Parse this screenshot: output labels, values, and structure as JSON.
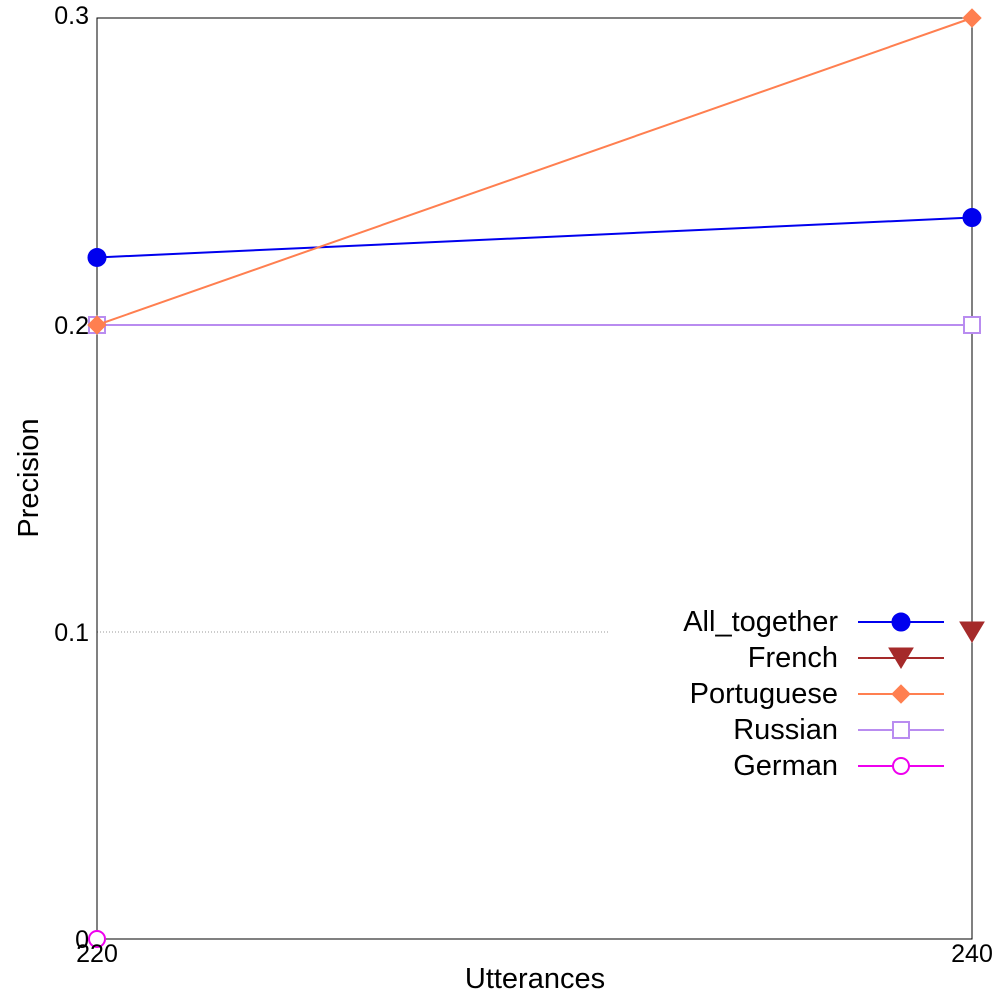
{
  "chart_data": {
    "type": "line",
    "xlabel": "Utterances",
    "ylabel": "Precision",
    "xlim": [
      220,
      240
    ],
    "ylim": [
      0,
      0.3
    ],
    "x_ticks": [
      "220",
      "240"
    ],
    "y_ticks": [
      "0",
      "0.1",
      "0.2",
      "0.3"
    ],
    "grid": "dotted line at y=0.1 (left portion only)",
    "legend_position": "right",
    "series": [
      {
        "name": "All_together",
        "color": "#0000ee",
        "marker": "filled-circle",
        "points": [
          [
            220,
            0.222
          ],
          [
            240,
            0.235
          ]
        ]
      },
      {
        "name": "French",
        "color": "#a52a2a",
        "marker": "filled-triangle-down",
        "points": [
          [
            240,
            0.1
          ]
        ]
      },
      {
        "name": "Portuguese",
        "color": "#ff7f50",
        "marker": "filled-diamond",
        "points": [
          [
            220,
            0.2
          ],
          [
            240,
            0.3
          ]
        ]
      },
      {
        "name": "Russian",
        "color": "#b98cf0",
        "marker": "open-square",
        "points": [
          [
            220,
            0.2
          ],
          [
            240,
            0.2
          ]
        ]
      },
      {
        "name": "German",
        "color": "#ee00ee",
        "marker": "open-circle",
        "points": [
          [
            220,
            0
          ]
        ]
      }
    ]
  }
}
